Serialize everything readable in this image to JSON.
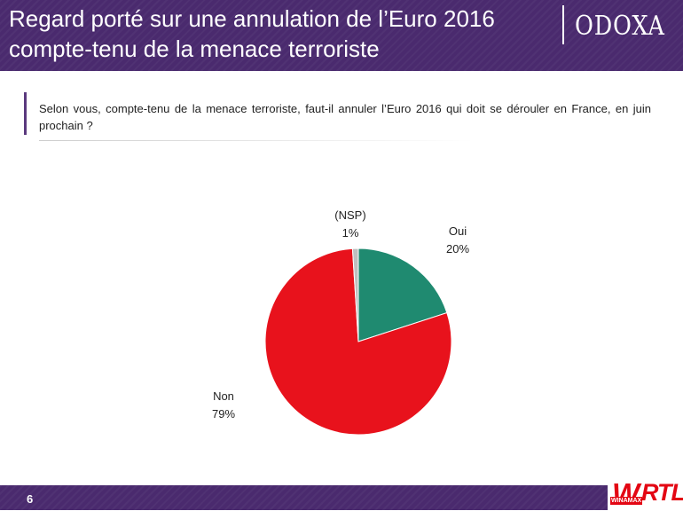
{
  "header": {
    "title_line1": "Regard porté sur une annulation de l’Euro 2016",
    "title_line2": "compte-tenu de la menace terroriste",
    "logo": "ODOXA"
  },
  "question": {
    "text": "Selon vous, compte-tenu de la menace terroriste, faut-il annuler l’Euro 2016 qui doit se dérouler en France, en juin prochain ?"
  },
  "chart_data": {
    "type": "pie",
    "title": "",
    "slices": [
      {
        "label": "Oui",
        "value": 20,
        "value_label": "20%",
        "color": "#1f8a70"
      },
      {
        "label": "Non",
        "value": 79,
        "value_label": "79%",
        "color": "#e8121c"
      },
      {
        "label": "(NSP)",
        "value": 1,
        "value_label": "1%",
        "color": "#bfbfbf"
      }
    ]
  },
  "footer": {
    "page_number": "6",
    "sponsor_winamax_mark": "W",
    "sponsor_winamax_text": "WINAMAX",
    "sponsor_rtl": "RTL"
  }
}
